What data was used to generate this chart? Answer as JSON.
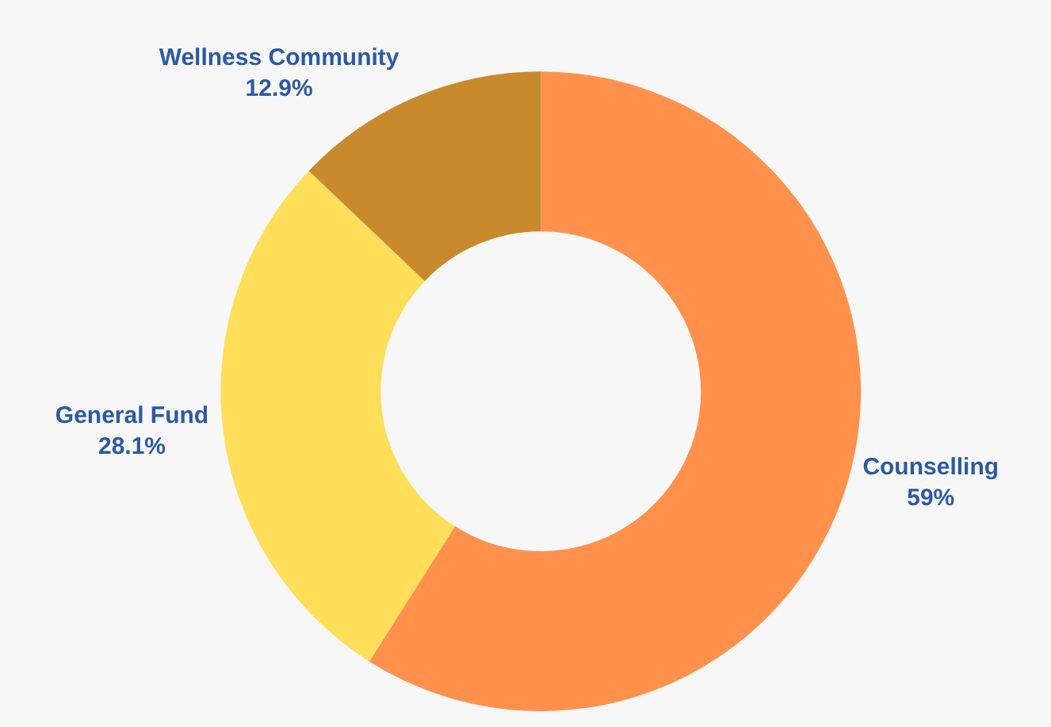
{
  "chart_data": {
    "type": "donut",
    "categories": [
      "Counselling",
      "General Fund",
      "Wellness Community"
    ],
    "values": [
      59,
      28.1,
      12.9
    ],
    "value_labels": [
      "59%",
      "28.1%",
      "12.9%"
    ],
    "colors": [
      "#ff914d",
      "#ffde59",
      "#c98a2e"
    ],
    "legend": false
  }
}
